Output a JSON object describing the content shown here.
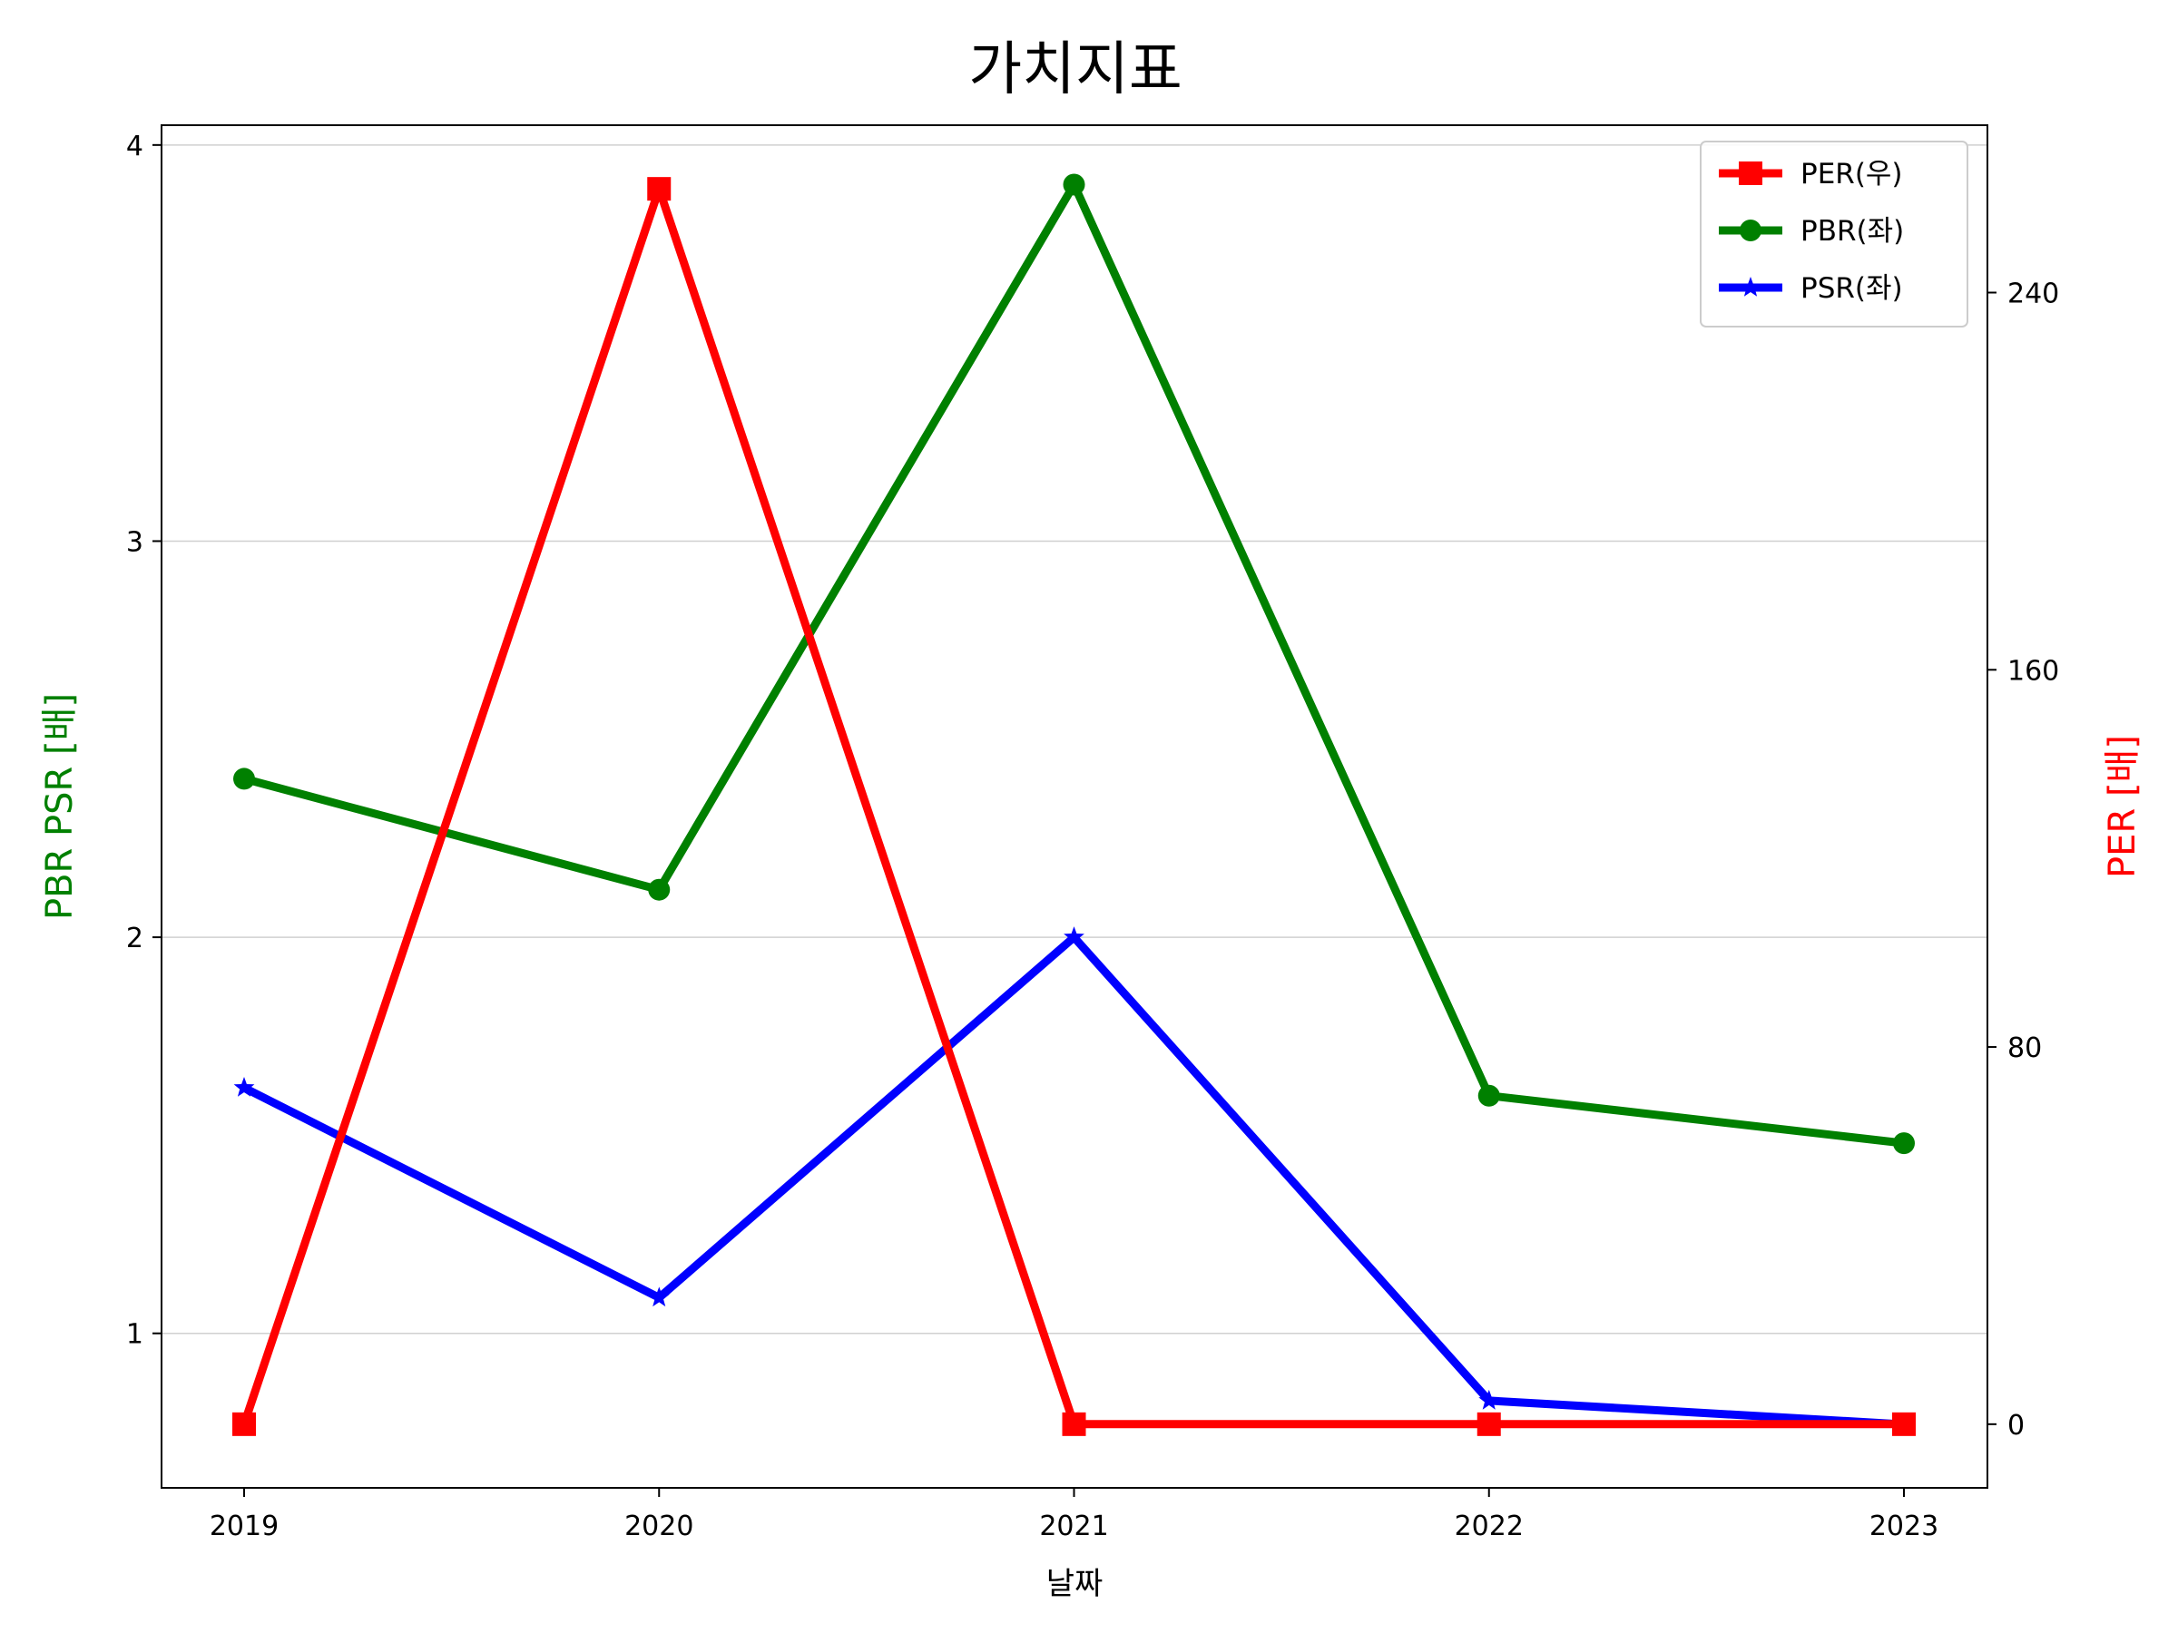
{
  "chart_data": {
    "type": "line",
    "title": "가치지표",
    "xlabel": "날짜",
    "ylabel_left": "PBR PSR [배]",
    "ylabel_right": "PER [배]",
    "categories": [
      "2019",
      "2020",
      "2021",
      "2022",
      "2023"
    ],
    "ylim_left": [
      0.61,
      4.05
    ],
    "yticks_left": [
      1,
      2,
      3,
      4
    ],
    "ylim_right": [
      -13.5,
      275.5
    ],
    "yticks_right": [
      0,
      80,
      160,
      240
    ],
    "grid": "horizontal (left axis)",
    "legend_position": "top-right",
    "series": [
      {
        "name": "PER(우)",
        "axis": "right",
        "marker": "square",
        "color": "#ff0000",
        "values": [
          0,
          262,
          0,
          0,
          0
        ]
      },
      {
        "name": "PBR(좌)",
        "axis": "left",
        "marker": "circle",
        "color": "#008000",
        "values": [
          2.4,
          2.12,
          3.9,
          1.6,
          1.48
        ]
      },
      {
        "name": "PSR(좌)",
        "axis": "left",
        "marker": "star",
        "color": "#0000ff",
        "values": [
          1.62,
          1.09,
          2.0,
          0.83,
          0.77
        ]
      }
    ]
  }
}
